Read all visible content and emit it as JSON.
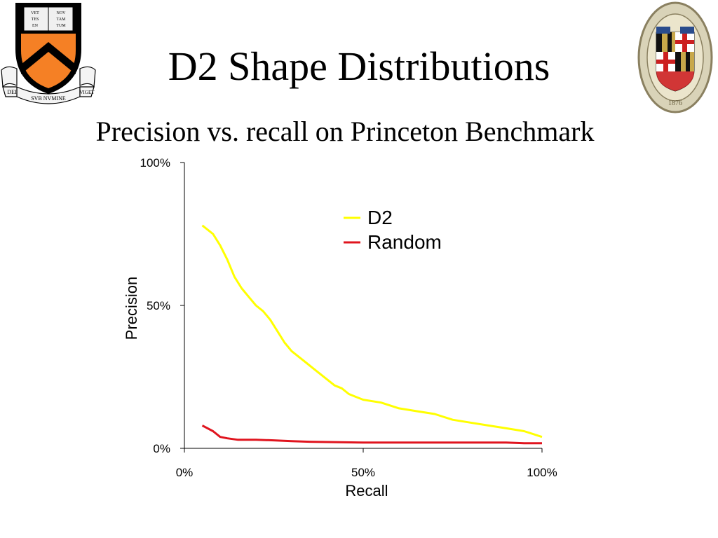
{
  "slide": {
    "title": "D2 Shape Distributions",
    "subtitle": "Precision vs. recall on Princeton Benchmark",
    "left_logo": {
      "name": "princeton-shield",
      "motto_left": "DEI",
      "motto_right": "VIGET",
      "motto_center": "SVB NVMINE",
      "book_left": "VET\nTES\nEN",
      "book_right": "NOV\nTAM\nTUM",
      "colors": {
        "orange": "#f58025",
        "black": "#000000"
      }
    },
    "right_logo": {
      "name": "johns-hopkins-seal",
      "year": "1876",
      "colors": {
        "gold": "#c8a84a",
        "black": "#111111",
        "red": "#cc2020",
        "blue": "#2a4c8c"
      }
    }
  },
  "chart_data": {
    "type": "line",
    "xlabel": "Recall",
    "ylabel": "Precision",
    "xlim": [
      0,
      100
    ],
    "ylim": [
      0,
      100
    ],
    "x_ticks": [
      "0%",
      "50%",
      "100%"
    ],
    "y_ticks": [
      "0%",
      "50%",
      "100%"
    ],
    "grid": false,
    "legend_position": "top-right",
    "series": [
      {
        "name": "D2",
        "color": "#ffff00",
        "x": [
          5,
          8,
          10,
          12,
          14,
          16,
          18,
          20,
          22,
          24,
          26,
          28,
          30,
          32,
          34,
          36,
          38,
          40,
          42,
          44,
          46,
          48,
          50,
          55,
          60,
          65,
          70,
          75,
          80,
          85,
          90,
          95,
          100
        ],
        "y": [
          78,
          75,
          71,
          66,
          60,
          56,
          53,
          50,
          48,
          45,
          41,
          37,
          34,
          32,
          30,
          28,
          26,
          24,
          22,
          21,
          19,
          18,
          17,
          16,
          14,
          13,
          12,
          10,
          9,
          8,
          7,
          6,
          4
        ]
      },
      {
        "name": "Random",
        "color": "#e0141e",
        "x": [
          5,
          8,
          10,
          12,
          15,
          20,
          25,
          30,
          35,
          40,
          45,
          50,
          60,
          70,
          80,
          90,
          95,
          100
        ],
        "y": [
          8,
          6,
          4,
          3.5,
          3,
          3,
          2.8,
          2.5,
          2.3,
          2.2,
          2.1,
          2,
          2,
          2,
          2,
          2,
          1.8,
          1.8
        ]
      }
    ]
  }
}
